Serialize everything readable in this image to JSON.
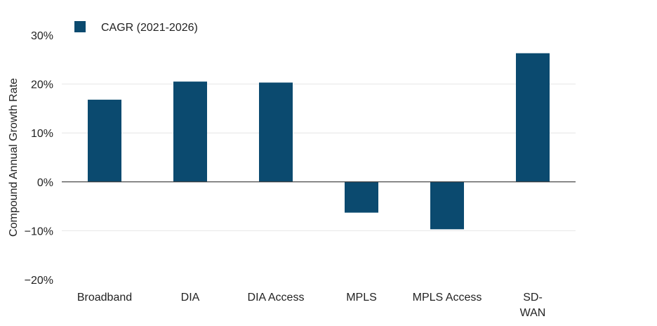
{
  "chart_data": {
    "type": "bar",
    "categories": [
      "Broadband",
      "DIA",
      "DIA Access",
      "MPLS",
      "MPLS Access",
      "SD-\nWAN"
    ],
    "series": [
      {
        "name": "CAGR (2021-2026)",
        "values": [
          16.8,
          20.5,
          20.3,
          -6.3,
          -9.7,
          26.3
        ]
      }
    ],
    "ylabel": "Compound Annual Growth Rate",
    "yticks": [
      "30%",
      "20%",
      "10%",
      "0%",
      "−10%",
      "−20%"
    ],
    "ylim": [
      -20,
      30
    ],
    "grid": true,
    "legend": "top-left",
    "colors": {
      "bar": "#0b4a6f",
      "grid": "#e6e6e6",
      "zero_line": "#333333"
    }
  }
}
